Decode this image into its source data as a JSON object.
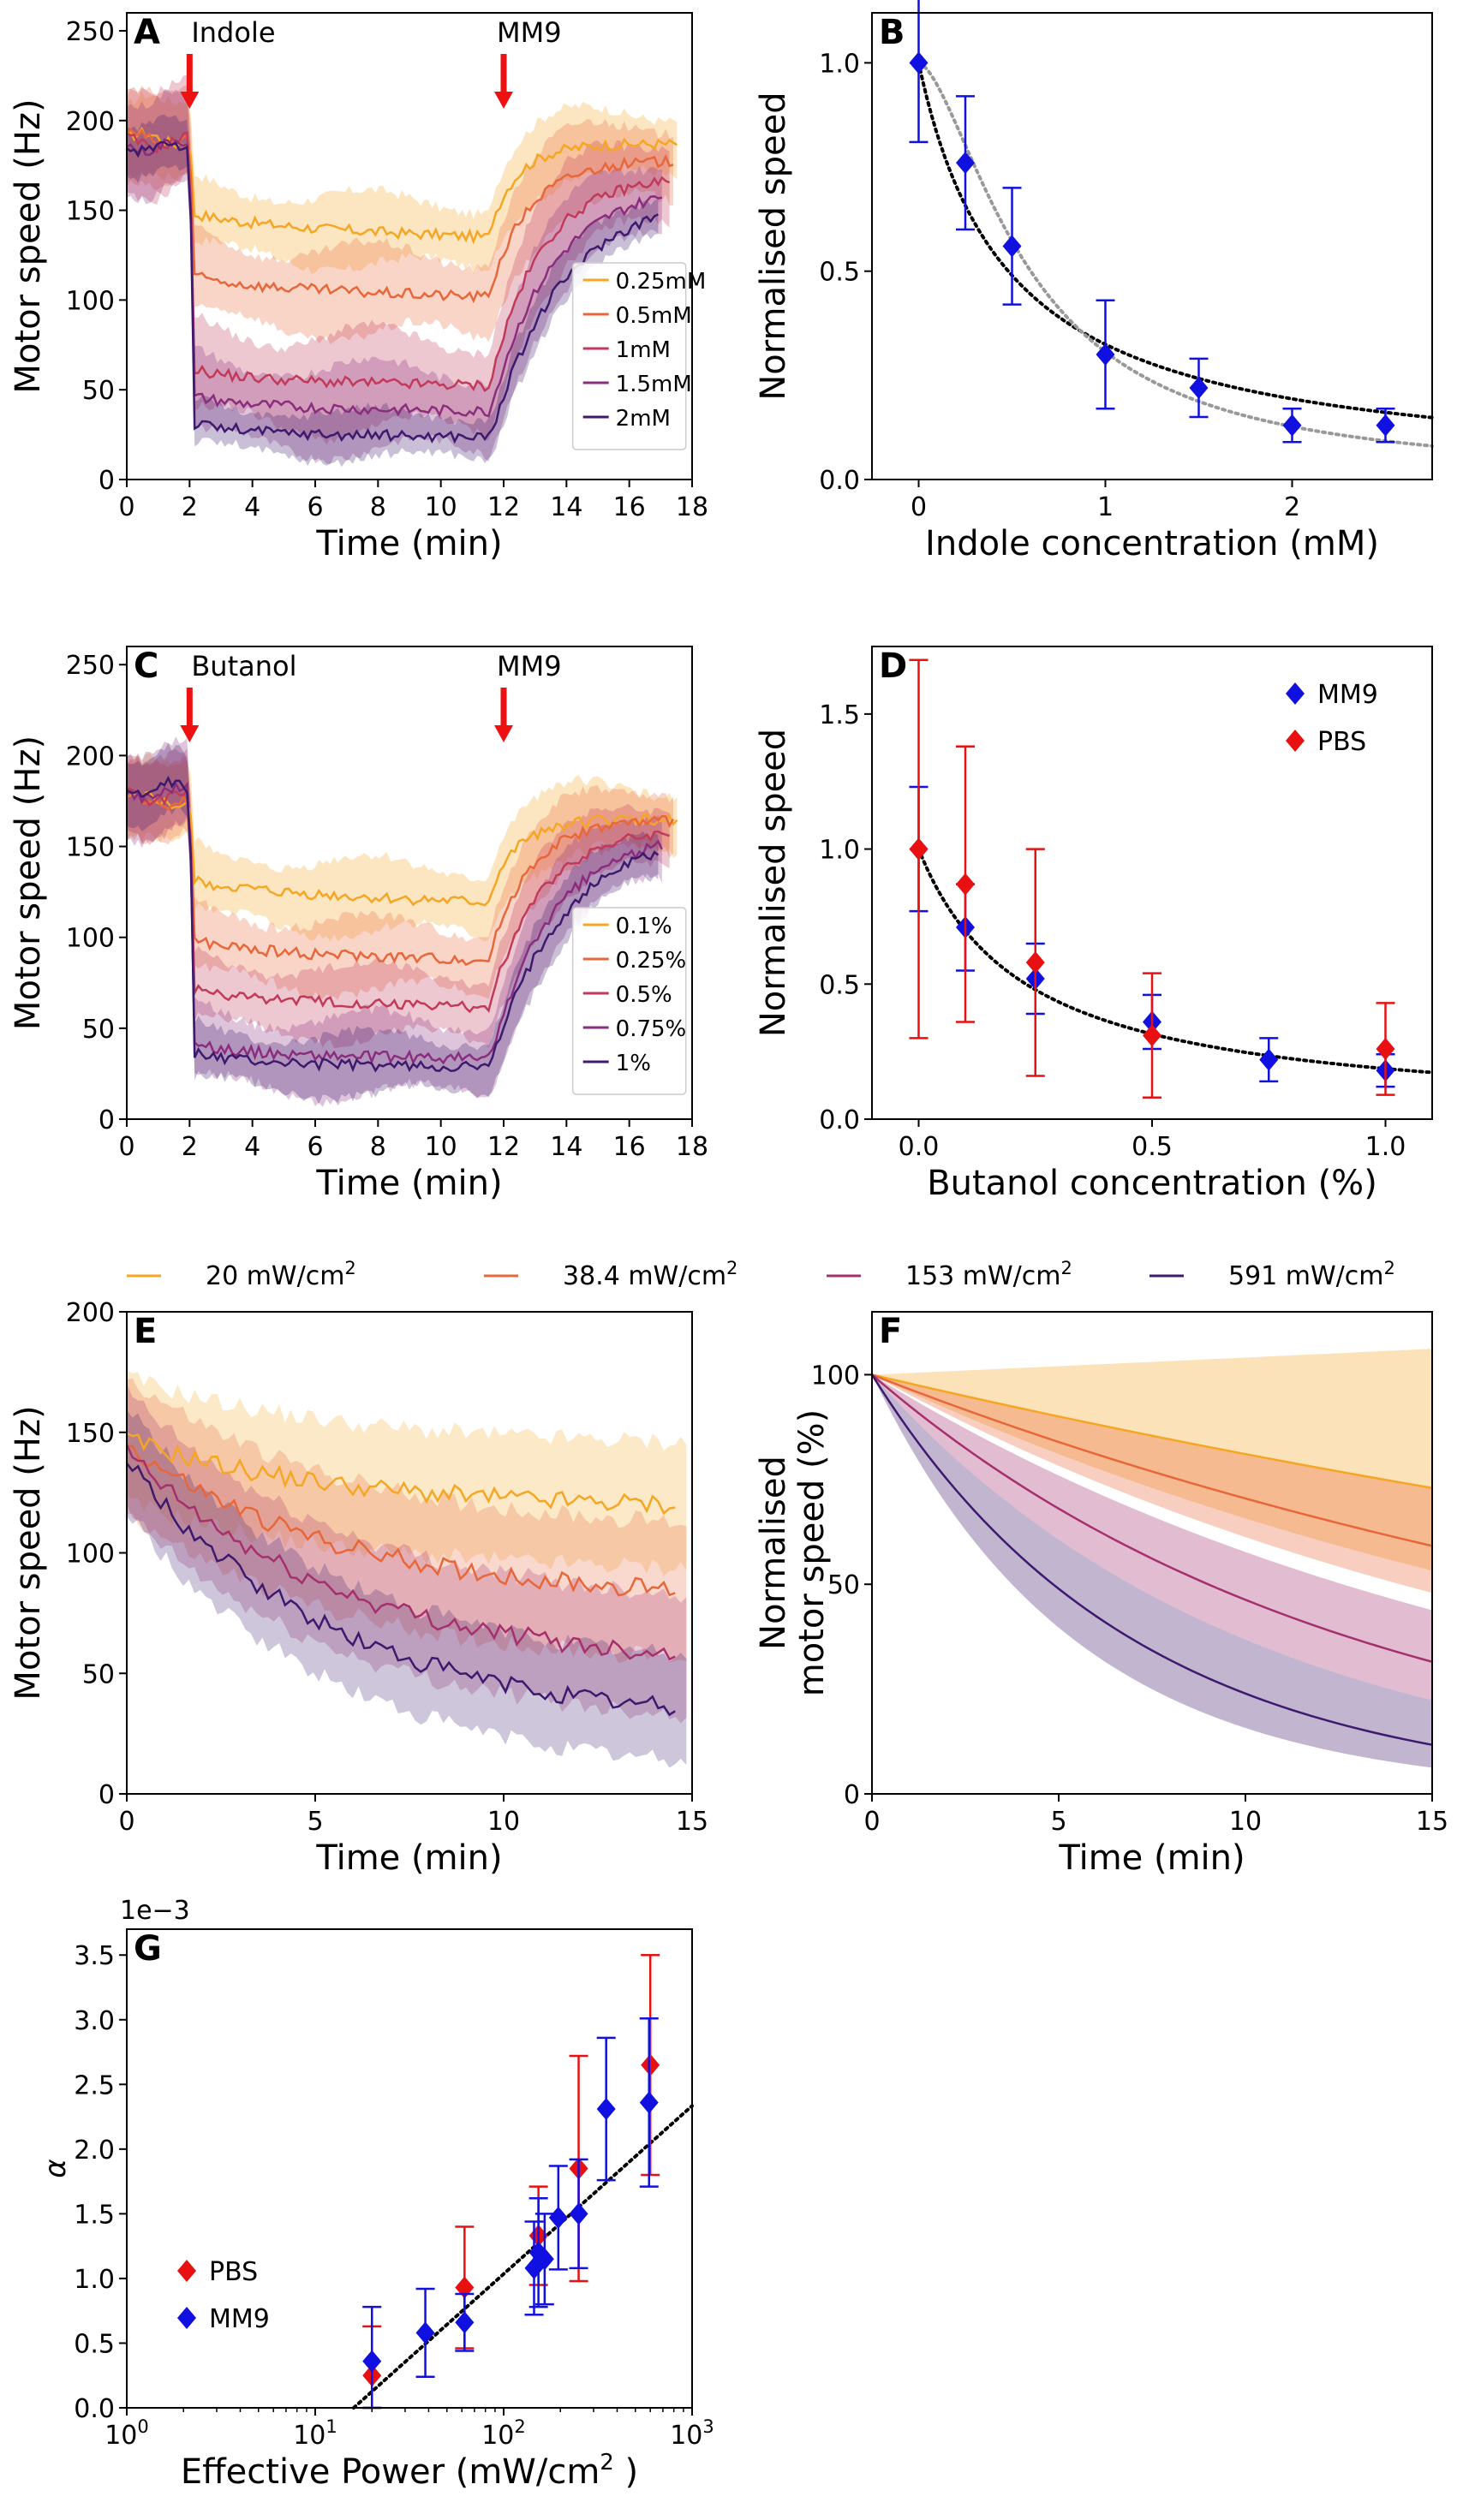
{
  "colors": {
    "axis": "#000000",
    "c1": "#f5a623",
    "c2": "#e8673a",
    "c3": "#c23a5a",
    "c4": "#8b2d7e",
    "c5": "#3d1a6e",
    "blue": "#1010e0",
    "red": "#e81010",
    "arrow": "#ee1111",
    "fitBlack": "#000000",
    "fitGray": "#999999"
  },
  "global_legend": {
    "items": [
      {
        "label": "20 mW/cm",
        "sup": "2",
        "color": "#f5a623"
      },
      {
        "label": "38.4 mW/cm",
        "sup": "2",
        "color": "#e8673a"
      },
      {
        "label": "153 mW/cm",
        "sup": "2",
        "color": "#a6306e"
      },
      {
        "label": "591 mW/cm",
        "sup": "2",
        "color": "#3d1a6e"
      }
    ]
  },
  "chart_data": [
    {
      "id": "A",
      "panel_label": "A",
      "type": "line",
      "title": "",
      "xlabel": "Time (min)",
      "ylabel": "Motor speed (Hz)",
      "xlim": [
        0,
        18
      ],
      "ylim": [
        0,
        260
      ],
      "xticks": [
        0,
        2,
        4,
        6,
        8,
        10,
        12,
        14,
        16,
        18
      ],
      "yticks": [
        0,
        50,
        100,
        150,
        200,
        250
      ],
      "annotations": [
        {
          "text": "Indole",
          "x": 2
        },
        {
          "text": "MM9",
          "x": 12
        }
      ],
      "legend_position": "center-right",
      "series": [
        {
          "name": "0.25mM",
          "color": "#f5a623",
          "pre": 190,
          "plateau": 142,
          "post": 187,
          "band": 18
        },
        {
          "name": "0.5mM",
          "color": "#e8673a",
          "pre": 190,
          "plateau": 107,
          "post": 178,
          "band": 22
        },
        {
          "name": "1mM",
          "color": "#c23a5a",
          "pre": 188,
          "plateau": 55,
          "post": 170,
          "band": 25
        },
        {
          "name": "1.5mM",
          "color": "#8b2d7e",
          "pre": 186,
          "plateau": 40,
          "post": 165,
          "band": 22
        },
        {
          "name": "2mM",
          "color": "#3d1a6e",
          "pre": 185,
          "plateau": 25,
          "post": 160,
          "band": 12
        }
      ]
    },
    {
      "id": "B",
      "panel_label": "B",
      "type": "scatter",
      "xlabel": "Indole concentration (mM)",
      "ylabel": "Normalised speed",
      "xlim": [
        -0.25,
        2.75
      ],
      "ylim": [
        0,
        1.12
      ],
      "xticks": [
        0,
        1,
        2
      ],
      "yticks": [
        0.0,
        0.5,
        1.0
      ],
      "ytick_labels": [
        "0.0",
        "0.5",
        "1.0"
      ],
      "series": [
        {
          "name": "MM9",
          "color": "#1010e0",
          "x": [
            0,
            0.25,
            0.5,
            1.0,
            1.5,
            2.0,
            2.5
          ],
          "y": [
            1.0,
            0.76,
            0.56,
            0.3,
            0.22,
            0.13,
            0.13
          ],
          "err": [
            0.19,
            0.16,
            0.14,
            0.13,
            0.07,
            0.04,
            0.04
          ]
        }
      ],
      "fits": [
        {
          "name": "fit-hyperbolic",
          "color": "#000000",
          "func": "hyper",
          "k": 0.48
        },
        {
          "name": "fit-hill",
          "color": "#999999",
          "func": "hill",
          "k": 0.6,
          "n": 1.6
        }
      ]
    },
    {
      "id": "C",
      "panel_label": "C",
      "type": "line",
      "xlabel": "Time (min)",
      "ylabel": "Motor speed (Hz)",
      "xlim": [
        0,
        18
      ],
      "ylim": [
        0,
        260
      ],
      "xticks": [
        0,
        2,
        4,
        6,
        8,
        10,
        12,
        14,
        16,
        18
      ],
      "yticks": [
        0,
        50,
        100,
        150,
        200,
        250
      ],
      "annotations": [
        {
          "text": "Butanol",
          "x": 2
        },
        {
          "text": "MM9",
          "x": 12
        }
      ],
      "legend_position": "center-right",
      "series": [
        {
          "name": "0.1%",
          "color": "#f5a623",
          "pre": 175,
          "plateau": 125,
          "post": 165,
          "band": 18
        },
        {
          "name": "0.25%",
          "color": "#e8673a",
          "pre": 175,
          "plateau": 92,
          "post": 165,
          "band": 18
        },
        {
          "name": "0.5%",
          "color": "#c23a5a",
          "pre": 178,
          "plateau": 65,
          "post": 160,
          "band": 18
        },
        {
          "name": "0.75%",
          "color": "#8b2d7e",
          "pre": 180,
          "plateau": 35,
          "post": 158,
          "band": 20
        },
        {
          "name": "1%",
          "color": "#3d1a6e",
          "pre": 182,
          "plateau": 30,
          "post": 160,
          "band": 15
        }
      ]
    },
    {
      "id": "D",
      "panel_label": "D",
      "type": "scatter",
      "xlabel": "Butanol concentration (%)",
      "ylabel": "Normalised speed",
      "xlim": [
        -0.1,
        1.1
      ],
      "ylim": [
        0,
        1.75
      ],
      "xticks": [
        0.0,
        0.5,
        1.0
      ],
      "xtick_labels": [
        "0.0",
        "0.5",
        "1.0"
      ],
      "yticks": [
        0.0,
        0.5,
        1.0,
        1.5
      ],
      "ytick_labels": [
        "0.0",
        "0.5",
        "1.0",
        "1.5"
      ],
      "legend_position": "top-right",
      "series": [
        {
          "name": "MM9",
          "color": "#1010e0",
          "x": [
            0,
            0.1,
            0.25,
            0.5,
            0.75,
            1.0
          ],
          "y": [
            1.0,
            0.71,
            0.52,
            0.36,
            0.22,
            0.18
          ],
          "err": [
            0.23,
            0.16,
            0.13,
            0.1,
            0.08,
            0.06
          ]
        },
        {
          "name": "PBS",
          "color": "#e81010",
          "x": [
            0,
            0.1,
            0.25,
            0.5,
            1.0
          ],
          "y": [
            1.0,
            0.87,
            0.58,
            0.31,
            0.26
          ],
          "err": [
            0.7,
            0.51,
            0.42,
            0.23,
            0.17
          ]
        }
      ],
      "fits": [
        {
          "name": "fit-hyperbolic",
          "color": "#000000",
          "func": "hyper",
          "k": 0.23
        }
      ]
    },
    {
      "id": "E",
      "panel_label": "E",
      "type": "line",
      "xlabel": "Time (min)",
      "ylabel": "Motor speed (Hz)",
      "xlim": [
        0,
        15
      ],
      "ylim": [
        0,
        200
      ],
      "xticks": [
        0,
        5,
        10,
        15
      ],
      "yticks": [
        0,
        50,
        100,
        150,
        200
      ],
      "series": [
        {
          "name": "20 mW/cm2",
          "color": "#f5a623",
          "start": 147,
          "end": 118,
          "band": 26
        },
        {
          "name": "38.4 mW/cm2",
          "color": "#e8673a",
          "start": 145,
          "end": 80,
          "band": 28
        },
        {
          "name": "153 mW/cm2",
          "color": "#a6306e",
          "start": 142,
          "end": 52,
          "band": 25
        },
        {
          "name": "591 mW/cm2",
          "color": "#3d1a6e",
          "start": 138,
          "end": 28,
          "band": 22
        }
      ]
    },
    {
      "id": "F",
      "panel_label": "F",
      "type": "area",
      "xlabel": "Time (min)",
      "ylabel": "Normalised motor speed (%)",
      "ylabel_lines": [
        "Normalised",
        "motor speed (%)"
      ],
      "xlim": [
        0,
        15
      ],
      "ylim": [
        0,
        115
      ],
      "xticks": [
        0,
        5,
        10,
        15
      ],
      "yticks": [
        0,
        50,
        100
      ],
      "series": [
        {
          "name": "20 mW/cm2",
          "color": "#f5a623",
          "alpha": 0.021,
          "alpha_lo": -0.004,
          "alpha_hi": 0.042
        },
        {
          "name": "38.4 mW/cm2",
          "color": "#e8673a",
          "alpha": 0.035,
          "alpha_lo": 0.021,
          "alpha_hi": 0.049
        },
        {
          "name": "153 mW/cm2",
          "color": "#a6306e",
          "alpha": 0.077,
          "alpha_lo": 0.055,
          "alpha_hi": 0.1
        },
        {
          "name": "591 mW/cm2",
          "color": "#3d1a6e",
          "alpha": 0.143,
          "alpha_lo": 0.1,
          "alpha_hi": 0.185
        }
      ]
    },
    {
      "id": "G",
      "panel_label": "G",
      "type": "scatter",
      "xlabel": "Effective Power (mW/cm",
      "xlabel_sup": "2",
      "xlabel_end": " )",
      "ylabel": "α",
      "offset_text": "1e−3",
      "xscale": "log",
      "xlim": [
        1,
        1000
      ],
      "ylim": [
        0,
        3.7
      ],
      "xticks": [
        1,
        10,
        100,
        1000
      ],
      "xtick_labels": [
        {
          "base": "10",
          "exp": "0"
        },
        {
          "base": "10",
          "exp": "1"
        },
        {
          "base": "10",
          "exp": "2"
        },
        {
          "base": "10",
          "exp": "3"
        }
      ],
      "yticks": [
        0,
        0.5,
        1.0,
        1.5,
        2.0,
        2.5,
        3.0,
        3.5
      ],
      "ytick_labels": [
        "0.0",
        "0.5",
        "1.0",
        "1.5",
        "2.0",
        "2.5",
        "3.0",
        "3.5"
      ],
      "legend_position": "bottom-left",
      "series": [
        {
          "name": "PBS",
          "color": "#e81010",
          "x": [
            20,
            62,
            153,
            250,
            600
          ],
          "y": [
            0.25,
            0.93,
            1.33,
            1.85,
            2.65
          ],
          "err": [
            0.38,
            0.47,
            0.38,
            0.87,
            0.85
          ]
        },
        {
          "name": "MM9",
          "color": "#1010e0",
          "x": [
            20,
            38.4,
            62,
            145,
            153,
            165,
            195,
            250,
            350,
            591
          ],
          "y": [
            0.36,
            0.58,
            0.66,
            1.08,
            1.2,
            1.15,
            1.47,
            1.5,
            2.31,
            2.36
          ],
          "err": [
            0.42,
            0.34,
            0.22,
            0.36,
            0.42,
            0.35,
            0.4,
            0.42,
            0.55,
            0.65
          ]
        }
      ],
      "fits": [
        {
          "name": "fit-log-linear",
          "color": "#000000",
          "func": "loglin",
          "x0": 16,
          "slope": 1.3
        }
      ]
    }
  ]
}
